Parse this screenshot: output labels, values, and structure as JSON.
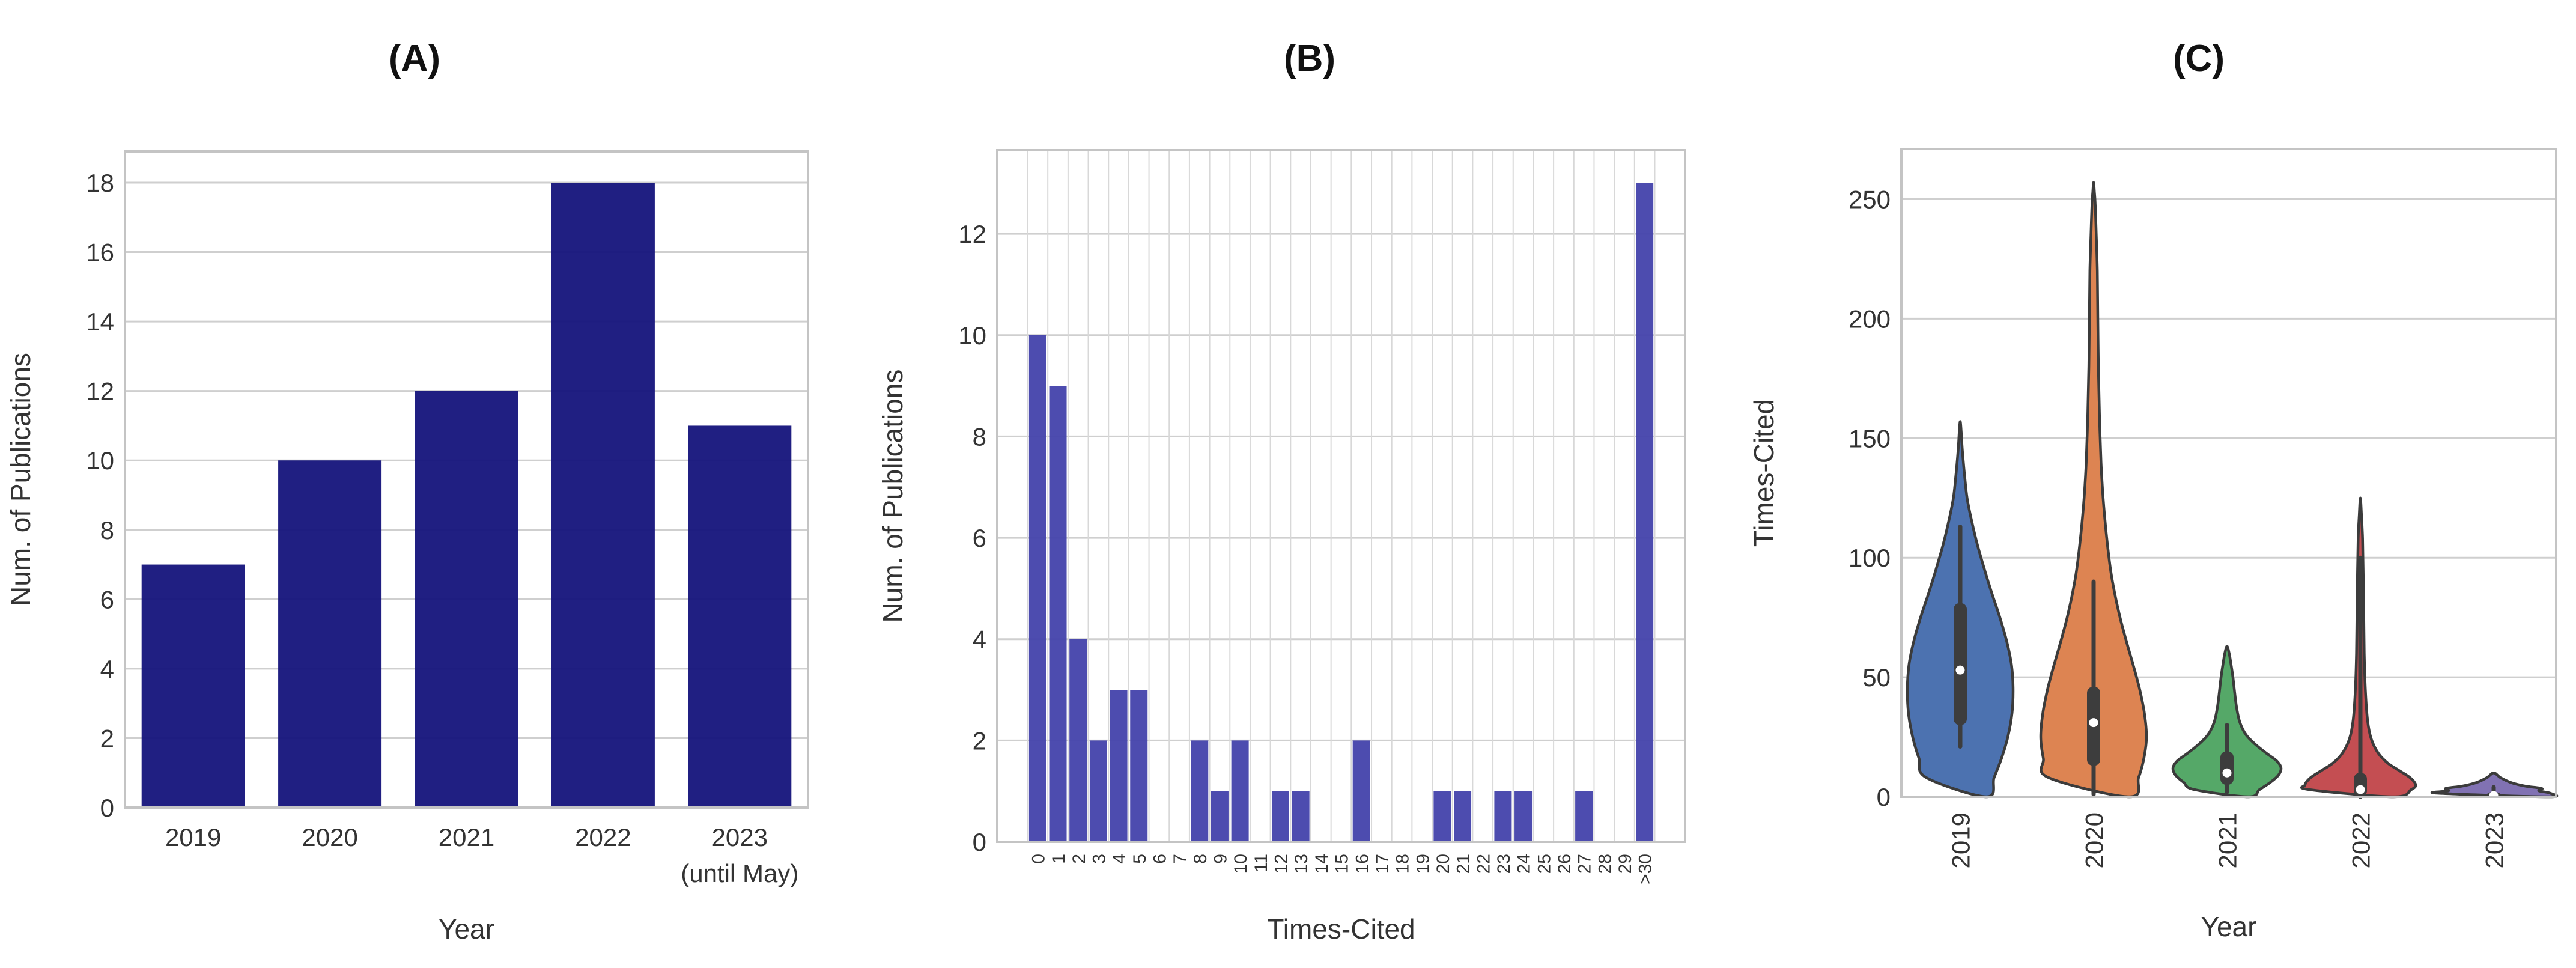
{
  "figure": {
    "background": "#ffffff",
    "grid_color": "#cfcfcf",
    "spine_color": "#c4c4c4",
    "tick_color": "#333333",
    "label_color": "#333333",
    "title_color": "#111111"
  },
  "chart_data": [
    {
      "id": "A",
      "type": "bar",
      "title": "(A)",
      "xlabel": "Year",
      "ylabel": "Num. of Publications",
      "categories": [
        "2019",
        "2020",
        "2021",
        "2022",
        "2023"
      ],
      "category_sublabels": [
        "",
        "",
        "",
        "",
        "(until May)"
      ],
      "values": [
        7,
        10,
        12,
        18,
        11
      ],
      "ylim": [
        0,
        18.9
      ],
      "yticks": [
        0,
        2,
        4,
        6,
        8,
        10,
        12,
        14,
        16,
        18
      ],
      "bar_color": "#14137b",
      "grid": "horizontal",
      "legend": "none"
    },
    {
      "id": "B",
      "type": "bar",
      "title": "(B)",
      "xlabel": "Times-Cited",
      "ylabel": "Num. of Publications",
      "categories": [
        "0",
        "1",
        "2",
        "3",
        "4",
        "5",
        "6",
        "7",
        "8",
        "9",
        "10",
        "11",
        "12",
        "13",
        "14",
        "15",
        "16",
        "17",
        "18",
        "19",
        "20",
        "21",
        "22",
        "23",
        "24",
        "25",
        "26",
        "27",
        "28",
        "29",
        ">30"
      ],
      "values": [
        10,
        9,
        4,
        2,
        3,
        3,
        0,
        0,
        2,
        1,
        2,
        0,
        1,
        1,
        0,
        0,
        2,
        0,
        0,
        0,
        1,
        1,
        0,
        1,
        1,
        0,
        0,
        1,
        0,
        0,
        13
      ],
      "ylim": [
        0,
        13.65
      ],
      "yticks": [
        0,
        2,
        4,
        6,
        8,
        10,
        12
      ],
      "bar_color": "#4342ab",
      "grid": "both",
      "xtick_rotation": -90,
      "legend": "none"
    },
    {
      "id": "C",
      "type": "violin",
      "title": "(C)",
      "xlabel": "Year",
      "ylabel": "Times-Cited",
      "categories": [
        "2019",
        "2020",
        "2021",
        "2022",
        "2023"
      ],
      "ylim": [
        0,
        271
      ],
      "yticks": [
        0,
        50,
        100,
        150,
        200,
        250
      ],
      "grid": "horizontal",
      "xtick_rotation": -90,
      "outline_color": "#3b3b3b",
      "inner_box_color": "#3d3d3d",
      "median_dot_color": "#ffffff",
      "series": [
        {
          "label": "2019",
          "color": "#4c72b0",
          "median": 53,
          "box_q1": 30,
          "box_q3": 81,
          "whisker_low": 21,
          "whisker_high": 113,
          "range_low": 0,
          "range_high": 157,
          "kde": [
            [
              0,
              0.5
            ],
            [
              8,
              0.64
            ],
            [
              16,
              0.78
            ],
            [
              25,
              0.9
            ],
            [
              35,
              0.98
            ],
            [
              45,
              1.0
            ],
            [
              55,
              0.97
            ],
            [
              65,
              0.88
            ],
            [
              75,
              0.75
            ],
            [
              85,
              0.6
            ],
            [
              95,
              0.46
            ],
            [
              105,
              0.33
            ],
            [
              115,
              0.22
            ],
            [
              125,
              0.13
            ],
            [
              135,
              0.08
            ],
            [
              145,
              0.04
            ],
            [
              152,
              0.02
            ],
            [
              157,
              0.0
            ]
          ]
        },
        {
          "label": "2020",
          "color": "#dd8452",
          "median": 31,
          "box_q1": 13,
          "box_q3": 46,
          "whisker_low": 1,
          "whisker_high": 90,
          "range_low": 0,
          "range_high": 257,
          "kde": [
            [
              0,
              0.68
            ],
            [
              8,
              0.85
            ],
            [
              16,
              0.95
            ],
            [
              25,
              1.0
            ],
            [
              35,
              0.96
            ],
            [
              45,
              0.87
            ],
            [
              55,
              0.75
            ],
            [
              65,
              0.62
            ],
            [
              75,
              0.5
            ],
            [
              85,
              0.4
            ],
            [
              95,
              0.32
            ],
            [
              110,
              0.24
            ],
            [
              125,
              0.18
            ],
            [
              140,
              0.14
            ],
            [
              160,
              0.11
            ],
            [
              180,
              0.09
            ],
            [
              200,
              0.08
            ],
            [
              220,
              0.07
            ],
            [
              235,
              0.05
            ],
            [
              248,
              0.03
            ],
            [
              253,
              0.015
            ],
            [
              257,
              0.0
            ]
          ]
        },
        {
          "label": "2021",
          "color": "#55a868",
          "median": 10,
          "box_q1": 5,
          "box_q3": 19,
          "whisker_low": 2,
          "whisker_high": 30,
          "range_low": 0,
          "range_high": 63,
          "kde": [
            [
              0,
              0.4
            ],
            [
              3,
              0.6
            ],
            [
              6,
              0.8
            ],
            [
              9,
              0.95
            ],
            [
              12,
              1.0
            ],
            [
              15,
              0.92
            ],
            [
              18,
              0.74
            ],
            [
              22,
              0.52
            ],
            [
              26,
              0.35
            ],
            [
              31,
              0.24
            ],
            [
              37,
              0.18
            ],
            [
              44,
              0.14
            ],
            [
              50,
              0.11
            ],
            [
              56,
              0.07
            ],
            [
              60,
              0.04
            ],
            [
              63,
              0.0
            ]
          ]
        },
        {
          "label": "2022",
          "color": "#c44e52",
          "median": 3,
          "box_q1": 0,
          "box_q3": 10,
          "whisker_low": 0,
          "whisker_high": 100,
          "range_low": 0,
          "range_high": 125,
          "kde": [
            [
              0,
              0.6
            ],
            [
              3,
              0.92
            ],
            [
              5,
              1.0
            ],
            [
              8,
              0.9
            ],
            [
              11,
              0.7
            ],
            [
              14,
              0.5
            ],
            [
              18,
              0.33
            ],
            [
              24,
              0.2
            ],
            [
              32,
              0.13
            ],
            [
              45,
              0.09
            ],
            [
              60,
              0.07
            ],
            [
              80,
              0.06
            ],
            [
              95,
              0.05
            ],
            [
              108,
              0.04
            ],
            [
              118,
              0.02
            ],
            [
              125,
              0.0
            ]
          ]
        },
        {
          "label": "2023",
          "color": "#8172b3",
          "median": 0.5,
          "box_q1": 0,
          "box_q3": 2,
          "whisker_low": 0,
          "whisker_high": 4,
          "range_low": 0,
          "range_high": 10,
          "kde": [
            [
              0,
              0.95
            ],
            [
              1.5,
              1.0
            ],
            [
              2.5,
              0.8
            ],
            [
              3.5,
              0.85
            ],
            [
              4.5,
              0.55
            ],
            [
              6,
              0.3
            ],
            [
              8,
              0.12
            ],
            [
              10,
              0.0
            ]
          ]
        }
      ]
    }
  ]
}
